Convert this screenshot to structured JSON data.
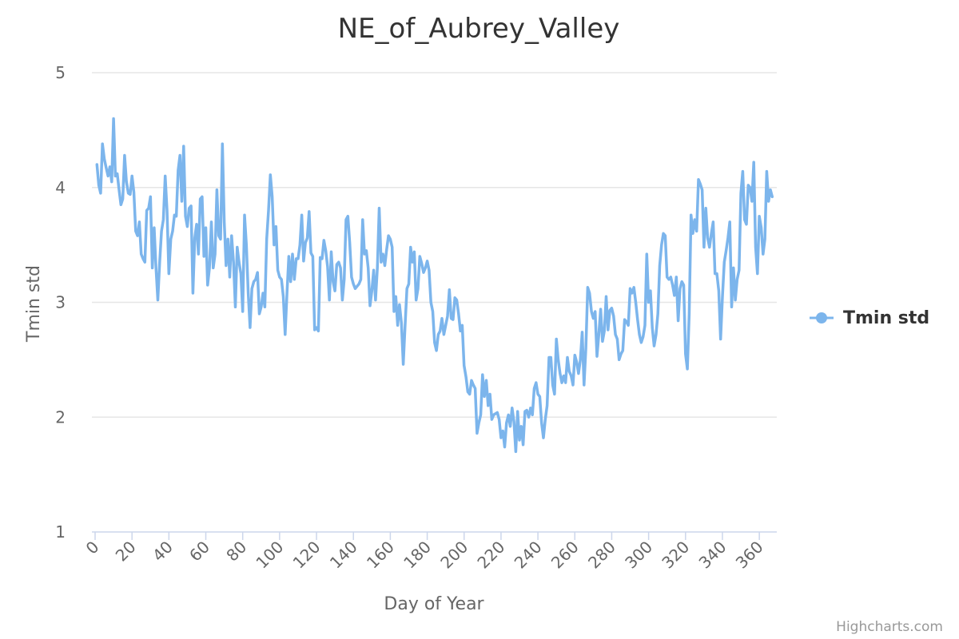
{
  "chart_data": {
    "type": "line",
    "title": "NE_of_Aubrey_Valley",
    "xlabel": "Day of Year",
    "ylabel": "Tmin std",
    "xlim": [
      0,
      366
    ],
    "ylim": [
      1,
      5
    ],
    "x_ticks": [
      "0",
      "20",
      "40",
      "60",
      "80",
      "100",
      "120",
      "140",
      "160",
      "180",
      "200",
      "220",
      "240",
      "260",
      "280",
      "300",
      "320",
      "340",
      "360"
    ],
    "y_ticks": [
      "1",
      "2",
      "3",
      "4",
      "5"
    ],
    "grid": "horizontal",
    "legend": {
      "position": "right"
    },
    "series": [
      {
        "name": "Tmin std",
        "color": "#7cb5ec",
        "x_start": 1,
        "values": [
          4.2,
          4.02,
          3.95,
          4.38,
          4.25,
          4.17,
          4.1,
          4.18,
          4.05,
          4.6,
          4.1,
          4.12,
          3.98,
          3.85,
          3.9,
          4.28,
          4.05,
          3.95,
          3.94,
          4.1,
          3.96,
          3.62,
          3.58,
          3.7,
          3.42,
          3.38,
          3.35,
          3.8,
          3.82,
          3.92,
          3.3,
          3.65,
          3.3,
          3.02,
          3.35,
          3.62,
          3.72,
          4.1,
          3.8,
          3.25,
          3.55,
          3.62,
          3.76,
          3.75,
          4.15,
          4.28,
          3.88,
          4.36,
          3.75,
          3.66,
          3.82,
          3.84,
          3.08,
          3.56,
          3.68,
          3.42,
          3.9,
          3.92,
          3.4,
          3.65,
          3.15,
          3.3,
          3.7,
          3.3,
          3.42,
          3.98,
          3.58,
          3.55,
          4.38,
          3.7,
          3.32,
          3.55,
          3.22,
          3.58,
          3.35,
          2.96,
          3.48,
          3.35,
          3.25,
          2.92,
          3.76,
          3.5,
          3.08,
          2.78,
          3.12,
          3.18,
          3.2,
          3.26,
          2.9,
          2.96,
          3.08,
          2.96,
          3.55,
          3.8,
          4.11,
          3.92,
          3.5,
          3.66,
          3.28,
          3.22,
          3.2,
          3.05,
          2.72,
          3.08,
          3.4,
          3.18,
          3.42,
          3.2,
          3.38,
          3.38,
          3.5,
          3.76,
          3.36,
          3.52,
          3.56,
          3.79,
          3.43,
          3.4,
          2.76,
          2.78,
          2.75,
          3.39,
          3.38,
          3.54,
          3.45,
          3.31,
          3.02,
          3.44,
          3.18,
          3.1,
          3.33,
          3.35,
          3.3,
          3.02,
          3.2,
          3.72,
          3.75,
          3.52,
          3.22,
          3.16,
          3.12,
          3.14,
          3.16,
          3.2,
          3.72,
          3.42,
          3.45,
          3.3,
          2.97,
          3.1,
          3.28,
          3.02,
          3.3,
          3.82,
          3.35,
          3.42,
          3.32,
          3.46,
          3.58,
          3.55,
          3.48,
          2.92,
          3.05,
          2.8,
          2.98,
          2.82,
          2.46,
          2.8,
          3.12,
          3.16,
          3.48,
          3.35,
          3.44,
          3.02,
          3.12,
          3.4,
          3.34,
          3.26,
          3.3,
          3.36,
          3.28,
          3.0,
          2.92,
          2.65,
          2.58,
          2.72,
          2.75,
          2.86,
          2.72,
          2.8,
          2.88,
          3.11,
          2.86,
          2.85,
          3.04,
          3.02,
          2.9,
          2.75,
          2.8,
          2.45,
          2.35,
          2.22,
          2.2,
          2.32,
          2.28,
          2.25,
          1.86,
          1.95,
          2.02,
          2.37,
          2.18,
          2.32,
          2.1,
          2.2,
          1.98,
          2.02,
          2.03,
          2.04,
          1.98,
          1.82,
          1.88,
          1.74,
          1.95,
          2.02,
          1.92,
          2.08,
          1.96,
          1.7,
          2.05,
          1.8,
          1.92,
          1.76,
          2.05,
          2.06,
          2.0,
          2.08,
          2.02,
          2.25,
          2.3,
          2.2,
          2.18,
          1.95,
          1.82,
          1.98,
          2.1,
          2.52,
          2.52,
          2.28,
          2.2,
          2.68,
          2.5,
          2.38,
          2.3,
          2.36,
          2.3,
          2.52,
          2.4,
          2.36,
          2.28,
          2.54,
          2.48,
          2.38,
          2.5,
          2.74,
          2.28,
          2.6,
          3.13,
          3.08,
          2.92,
          2.86,
          2.92,
          2.53,
          2.72,
          2.94,
          2.66,
          2.75,
          3.05,
          2.76,
          2.93,
          2.95,
          2.88,
          2.72,
          2.68,
          2.5,
          2.55,
          2.58,
          2.85,
          2.83,
          2.8,
          3.12,
          3.08,
          3.13,
          3.0,
          2.85,
          2.72,
          2.65,
          2.7,
          2.8,
          3.42,
          3.0,
          3.1,
          2.78,
          2.62,
          2.72,
          2.9,
          3.32,
          3.5,
          3.6,
          3.58,
          3.22,
          3.2,
          3.22,
          3.15,
          3.06,
          3.22,
          2.84,
          3.12,
          3.18,
          3.15,
          2.55,
          2.42,
          2.9,
          3.76,
          3.6,
          3.72,
          3.62,
          4.07,
          4.03,
          3.98,
          3.48,
          3.82,
          3.56,
          3.48,
          3.6,
          3.7,
          3.25,
          3.25,
          3.1,
          2.68,
          3.05,
          3.35,
          3.45,
          3.56,
          3.7,
          2.96,
          3.3,
          3.02,
          3.2,
          3.28,
          3.95,
          4.14,
          3.72,
          3.68,
          4.02,
          4.0,
          3.88,
          4.22,
          3.48,
          3.25,
          3.75,
          3.65,
          3.42,
          3.55,
          4.14,
          3.88,
          3.98,
          3.92
        ]
      }
    ]
  },
  "credits": "Highcharts.com"
}
